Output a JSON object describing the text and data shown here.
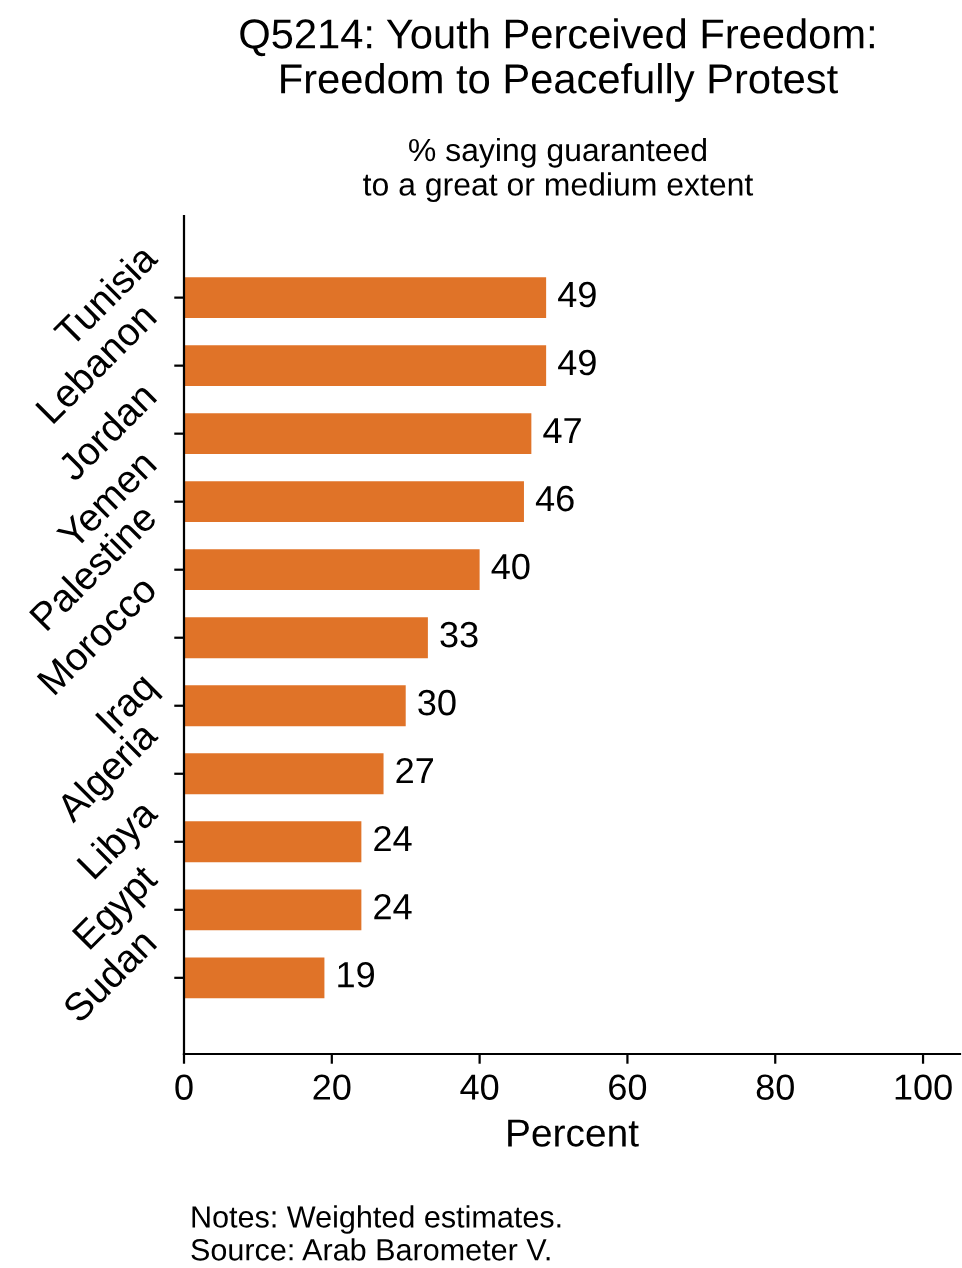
{
  "chart_data": {
    "type": "bar",
    "orientation": "horizontal",
    "title": "Q5214: Youth Perceived Freedom:\nFreedom to Peacefully Protest",
    "subtitle": "% saying guaranteed\nto a great or medium extent",
    "xlabel": "Percent",
    "categories": [
      "Tunisia",
      "Lebanon",
      "Jordan",
      "Yemen",
      "Palestine",
      "Morocco",
      "Iraq",
      "Algeria",
      "Libya",
      "Egypt",
      "Sudan"
    ],
    "values": [
      49,
      49,
      47,
      46,
      40,
      33,
      30,
      27,
      24,
      24,
      19
    ],
    "color": "#e07328",
    "xlim": [
      0,
      105
    ],
    "xticks": [
      0,
      20,
      40,
      60,
      80,
      100
    ],
    "data_labels": true,
    "grid": false,
    "legend": false,
    "annotations": [
      "Notes: Weighted estimates.\nSource: Arab Barometer V."
    ]
  }
}
